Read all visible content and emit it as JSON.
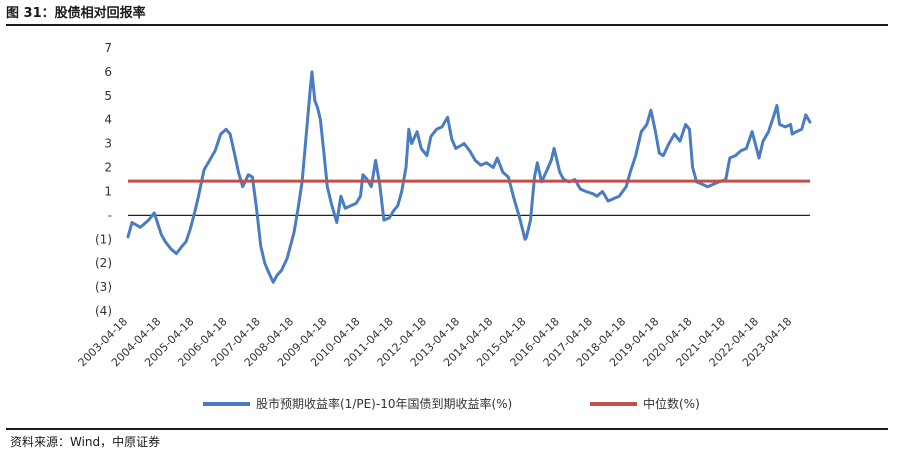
{
  "header": {
    "title": "图 31：股债相对回报率"
  },
  "footer": {
    "source": "资料来源：Wind，中原证券"
  },
  "colors": {
    "series_main": "#4a7cc2",
    "series_median": "#c0504d",
    "zero_line": "#222222"
  },
  "chart_data": {
    "type": "line",
    "title": "",
    "xlabel": "",
    "ylabel": "",
    "ylim": [
      -4,
      7
    ],
    "y_ticks": [
      {
        "value": 7,
        "label": "7"
      },
      {
        "value": 6,
        "label": "6"
      },
      {
        "value": 5,
        "label": "5"
      },
      {
        "value": 4,
        "label": "4"
      },
      {
        "value": 3,
        "label": "3"
      },
      {
        "value": 2,
        "label": "2"
      },
      {
        "value": 1,
        "label": "1"
      },
      {
        "value": 0,
        "label": "-"
      },
      {
        "value": -1,
        "label": "(1)"
      },
      {
        "value": -2,
        "label": "(2)"
      },
      {
        "value": -3,
        "label": "(3)"
      },
      {
        "value": -4,
        "label": "(4)"
      }
    ],
    "x_tick_labels": [
      "2003-04-18",
      "2004-04-18",
      "2005-04-18",
      "2006-04-18",
      "2007-04-18",
      "2008-04-18",
      "2009-04-18",
      "2010-04-18",
      "2011-04-18",
      "2012-04-18",
      "2013-04-18",
      "2014-04-18",
      "2015-04-18",
      "2016-04-18",
      "2017-04-18",
      "2018-04-18",
      "2019-04-18",
      "2020-04-18",
      "2021-04-18",
      "2022-04-18",
      "2023-04-18"
    ],
    "x_range": [
      "2003-04-18",
      "2023-10-31"
    ],
    "legend": {
      "position": "bottom"
    },
    "series": [
      {
        "name": "股市预期收益率(1/PE)-10年国债到期收益率(%)",
        "points": [
          [
            "2003-04-18",
            -0.9
          ],
          [
            "2003-06-01",
            -0.3
          ],
          [
            "2003-09-01",
            -0.5
          ],
          [
            "2003-12-01",
            -0.2
          ],
          [
            "2004-02-01",
            0.1
          ],
          [
            "2004-04-18",
            -0.8
          ],
          [
            "2004-06-01",
            -1.1
          ],
          [
            "2004-08-01",
            -1.4
          ],
          [
            "2004-10-01",
            -1.6
          ],
          [
            "2004-12-01",
            -1.3
          ],
          [
            "2005-01-15",
            -1.1
          ],
          [
            "2005-03-01",
            -0.6
          ],
          [
            "2005-04-18",
            0.1
          ],
          [
            "2005-06-01",
            0.8
          ],
          [
            "2005-08-01",
            1.9
          ],
          [
            "2005-10-01",
            2.3
          ],
          [
            "2005-12-01",
            2.7
          ],
          [
            "2006-02-01",
            3.4
          ],
          [
            "2006-04-01",
            3.6
          ],
          [
            "2006-05-15",
            3.4
          ],
          [
            "2006-07-01",
            2.6
          ],
          [
            "2006-08-15",
            1.8
          ],
          [
            "2006-10-01",
            1.2
          ],
          [
            "2006-12-01",
            1.7
          ],
          [
            "2007-01-15",
            1.6
          ],
          [
            "2007-03-01",
            0.3
          ],
          [
            "2007-04-18",
            -1.3
          ],
          [
            "2007-06-01",
            -2.0
          ],
          [
            "2007-07-15",
            -2.4
          ],
          [
            "2007-09-01",
            -2.8
          ],
          [
            "2007-10-15",
            -2.5
          ],
          [
            "2007-12-01",
            -2.3
          ],
          [
            "2008-02-01",
            -1.8
          ],
          [
            "2008-04-18",
            -0.7
          ],
          [
            "2008-06-01",
            0.3
          ],
          [
            "2008-07-15",
            1.4
          ],
          [
            "2008-09-01",
            3.5
          ],
          [
            "2008-10-15",
            5.4
          ],
          [
            "2008-11-01",
            6.0
          ],
          [
            "2008-12-01",
            4.8
          ],
          [
            "2009-01-01",
            4.5
          ],
          [
            "2009-02-01",
            4.0
          ],
          [
            "2009-03-15",
            2.5
          ],
          [
            "2009-04-18",
            1.2
          ],
          [
            "2009-06-01",
            0.5
          ],
          [
            "2009-08-01",
            -0.3
          ],
          [
            "2009-09-15",
            0.8
          ],
          [
            "2009-11-01",
            0.3
          ],
          [
            "2010-01-01",
            0.4
          ],
          [
            "2010-03-01",
            0.5
          ],
          [
            "2010-04-18",
            0.8
          ],
          [
            "2010-05-15",
            1.7
          ],
          [
            "2010-07-01",
            1.5
          ],
          [
            "2010-08-15",
            1.2
          ],
          [
            "2010-10-01",
            2.3
          ],
          [
            "2010-11-15",
            1.3
          ],
          [
            "2011-01-01",
            -0.2
          ],
          [
            "2011-03-01",
            -0.1
          ],
          [
            "2011-04-18",
            0.2
          ],
          [
            "2011-06-01",
            0.4
          ],
          [
            "2011-07-15",
            1.0
          ],
          [
            "2011-09-01",
            2.0
          ],
          [
            "2011-10-01",
            3.6
          ],
          [
            "2011-11-01",
            3.0
          ],
          [
            "2012-01-01",
            3.5
          ],
          [
            "2012-02-15",
            2.8
          ],
          [
            "2012-04-18",
            2.5
          ],
          [
            "2012-06-01",
            3.3
          ],
          [
            "2012-08-01",
            3.6
          ],
          [
            "2012-10-01",
            3.7
          ],
          [
            "2012-12-01",
            4.1
          ],
          [
            "2013-01-15",
            3.2
          ],
          [
            "2013-03-01",
            2.8
          ],
          [
            "2013-04-18",
            2.9
          ],
          [
            "2013-06-01",
            3.0
          ],
          [
            "2013-08-01",
            2.7
          ],
          [
            "2013-10-01",
            2.3
          ],
          [
            "2013-12-01",
            2.1
          ],
          [
            "2014-02-01",
            2.2
          ],
          [
            "2014-04-18",
            2.0
          ],
          [
            "2014-06-01",
            2.4
          ],
          [
            "2014-08-01",
            1.8
          ],
          [
            "2014-10-01",
            1.6
          ],
          [
            "2014-12-01",
            0.7
          ],
          [
            "2015-02-01",
            -0.1
          ],
          [
            "2015-04-01",
            -1.0
          ],
          [
            "2015-04-18",
            -0.9
          ],
          [
            "2015-06-01",
            -0.2
          ],
          [
            "2015-07-15",
            1.6
          ],
          [
            "2015-08-15",
            2.2
          ],
          [
            "2015-10-01",
            1.4
          ],
          [
            "2015-12-01",
            1.9
          ],
          [
            "2016-01-15",
            2.3
          ],
          [
            "2016-02-15",
            2.8
          ],
          [
            "2016-04-18",
            1.8
          ],
          [
            "2016-06-01",
            1.5
          ],
          [
            "2016-08-01",
            1.4
          ],
          [
            "2016-10-01",
            1.5
          ],
          [
            "2016-12-01",
            1.1
          ],
          [
            "2017-02-01",
            1.0
          ],
          [
            "2017-04-18",
            0.9
          ],
          [
            "2017-06-01",
            0.8
          ],
          [
            "2017-08-01",
            1.0
          ],
          [
            "2017-10-01",
            0.6
          ],
          [
            "2017-12-01",
            0.7
          ],
          [
            "2018-02-01",
            0.8
          ],
          [
            "2018-04-18",
            1.2
          ],
          [
            "2018-06-01",
            1.8
          ],
          [
            "2018-08-01",
            2.5
          ],
          [
            "2018-10-01",
            3.5
          ],
          [
            "2018-12-01",
            3.8
          ],
          [
            "2019-01-15",
            4.4
          ],
          [
            "2019-03-01",
            3.6
          ],
          [
            "2019-04-18",
            2.6
          ],
          [
            "2019-06-01",
            2.5
          ],
          [
            "2019-08-01",
            3.0
          ],
          [
            "2019-10-01",
            3.4
          ],
          [
            "2019-12-01",
            3.1
          ],
          [
            "2020-02-01",
            3.8
          ],
          [
            "2020-03-15",
            3.6
          ],
          [
            "2020-04-18",
            2.0
          ],
          [
            "2020-06-01",
            1.4
          ],
          [
            "2020-08-01",
            1.3
          ],
          [
            "2020-10-01",
            1.2
          ],
          [
            "2020-12-01",
            1.3
          ],
          [
            "2021-02-01",
            1.4
          ],
          [
            "2021-04-18",
            1.5
          ],
          [
            "2021-06-01",
            2.4
          ],
          [
            "2021-08-01",
            2.5
          ],
          [
            "2021-10-01",
            2.7
          ],
          [
            "2021-12-01",
            2.8
          ],
          [
            "2022-02-01",
            3.5
          ],
          [
            "2022-03-15",
            2.9
          ],
          [
            "2022-04-18",
            2.4
          ],
          [
            "2022-06-01",
            3.1
          ],
          [
            "2022-08-01",
            3.5
          ],
          [
            "2022-10-01",
            4.2
          ],
          [
            "2022-11-01",
            4.6
          ],
          [
            "2022-12-01",
            3.8
          ],
          [
            "2023-02-01",
            3.7
          ],
          [
            "2023-04-01",
            3.8
          ],
          [
            "2023-04-18",
            3.4
          ],
          [
            "2023-06-01",
            3.5
          ],
          [
            "2023-08-01",
            3.6
          ],
          [
            "2023-09-15",
            4.2
          ],
          [
            "2023-10-31",
            3.9
          ]
        ]
      },
      {
        "name": "中位数(%)",
        "constant": 1.43
      }
    ]
  }
}
